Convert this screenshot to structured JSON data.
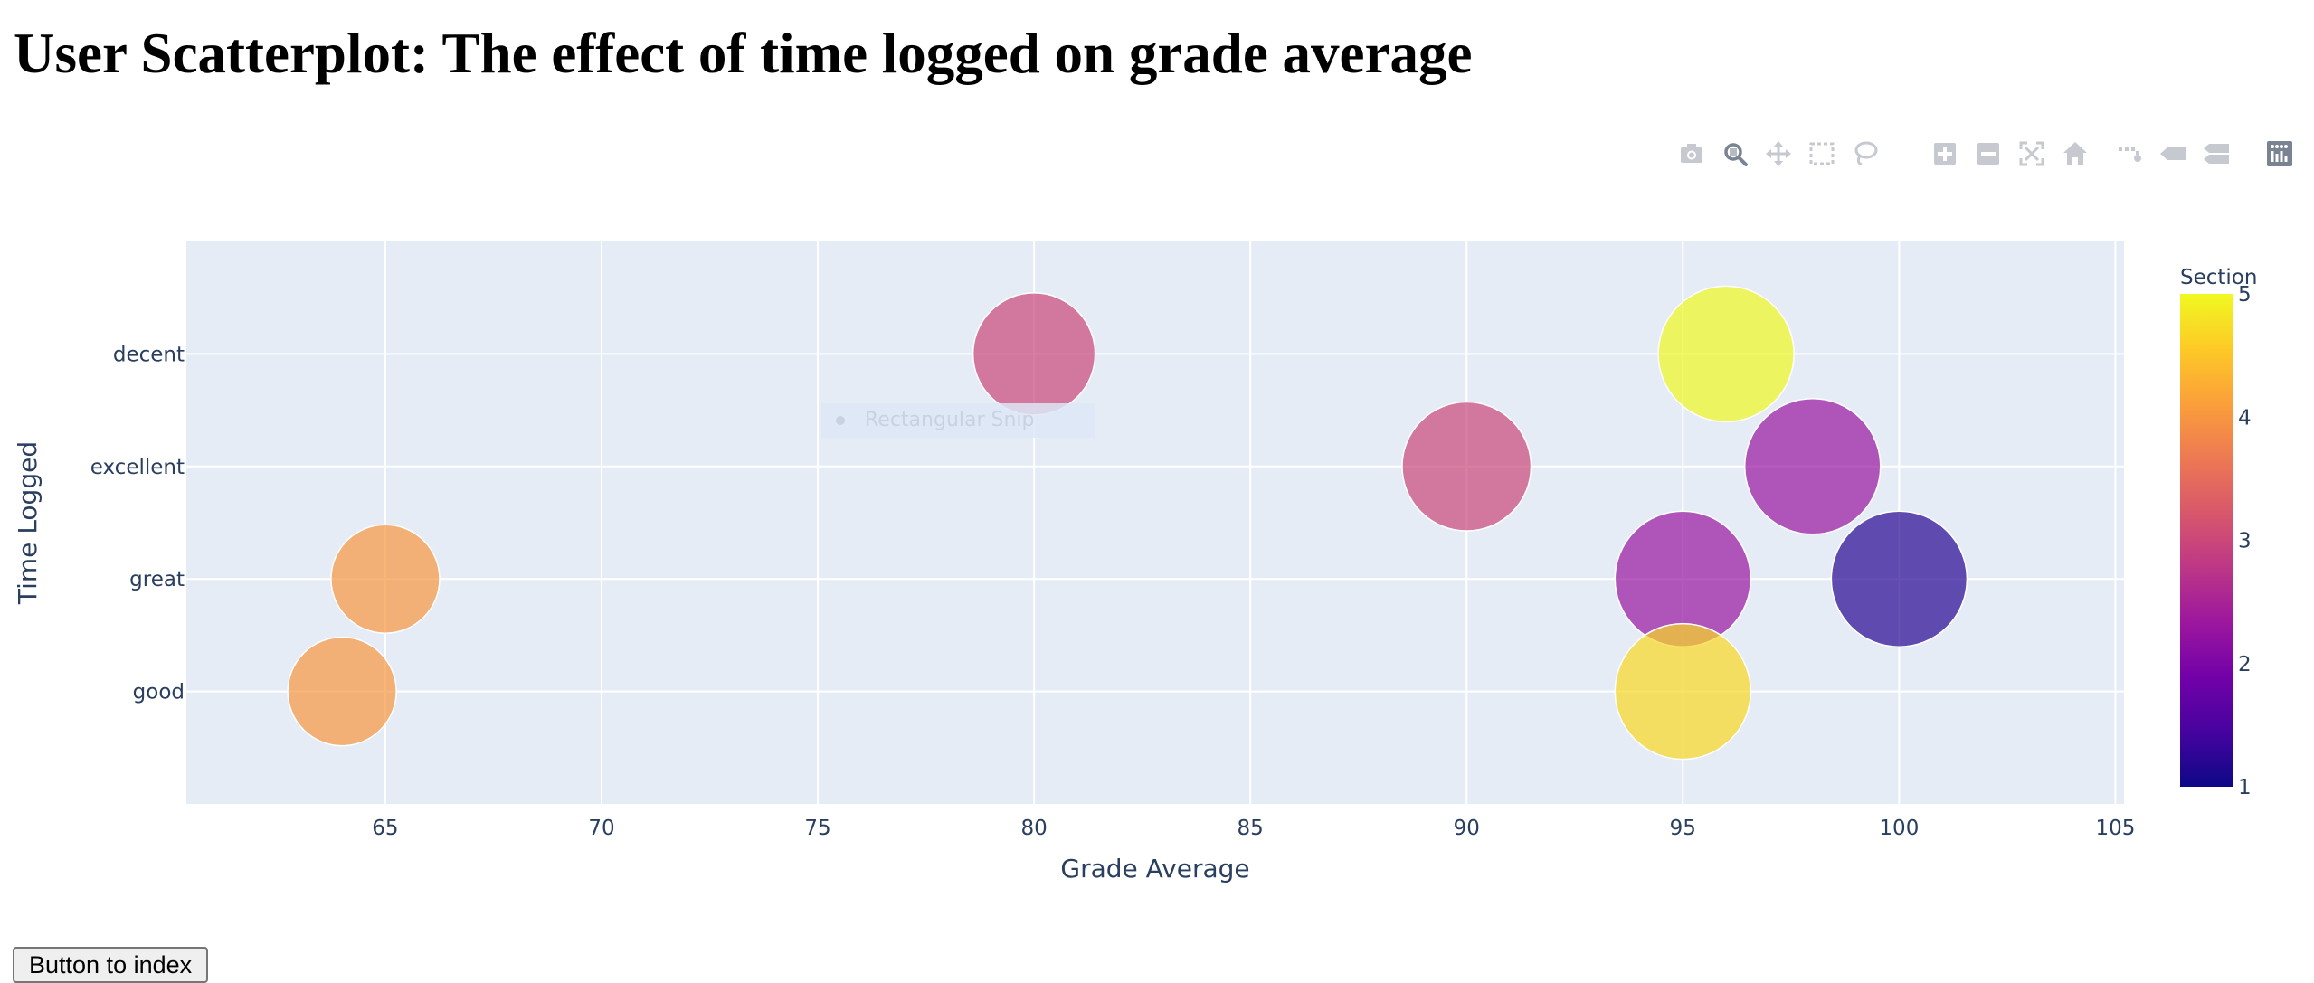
{
  "page": {
    "title": "User Scatterplot: The effect of time logged on grade average",
    "button_label": "Button to index"
  },
  "modebar": {
    "buttons": [
      {
        "name": "camera-icon"
      },
      {
        "name": "zoom-icon",
        "active": true
      },
      {
        "name": "pan-icon"
      },
      {
        "name": "box-select-icon"
      },
      {
        "name": "lasso-select-icon"
      },
      {
        "name": "zoom-in-icon"
      },
      {
        "name": "zoom-out-icon"
      },
      {
        "name": "autoscale-icon"
      },
      {
        "name": "reset-axes-icon"
      },
      {
        "name": "spike-lines-icon"
      },
      {
        "name": "hover-closest-icon"
      },
      {
        "name": "hover-compare-icon"
      },
      {
        "name": "plotly-logo-icon"
      }
    ]
  },
  "overlay": {
    "snip_label": "Rectangular Snip"
  },
  "chart_data": {
    "type": "scatter",
    "title": "",
    "xlabel": "Grade Average",
    "ylabel": "Time Logged",
    "xlim": [
      60.4,
      105.2
    ],
    "x_ticks": [
      65,
      70,
      75,
      80,
      85,
      90,
      95,
      100,
      105
    ],
    "y_categories": [
      "good",
      "great",
      "excellent",
      "decent"
    ],
    "grid": true,
    "colorbar": {
      "title": "Section",
      "range": [
        1,
        5
      ],
      "ticks": [
        1,
        2,
        3,
        4,
        5
      ],
      "colorscale": [
        "#0d0887",
        "#46039f",
        "#7201a8",
        "#9c179e",
        "#bd3786",
        "#d8576b",
        "#ed7953",
        "#fb9f3a",
        "#fdca26",
        "#f0f921"
      ]
    },
    "points": [
      {
        "x": 80,
        "y": "decent",
        "section": 3,
        "size": 9
      },
      {
        "x": 96,
        "y": "decent",
        "section": 5,
        "size": 10
      },
      {
        "x": 90,
        "y": "excellent",
        "section": 3,
        "size": 9.5
      },
      {
        "x": 98,
        "y": "excellent",
        "section": 2.3,
        "size": 10
      },
      {
        "x": 65,
        "y": "great",
        "section": 4,
        "size": 8
      },
      {
        "x": 95,
        "y": "great",
        "section": 2.3,
        "size": 10
      },
      {
        "x": 100,
        "y": "great",
        "section": 1.2,
        "size": 10
      },
      {
        "x": 64,
        "y": "good",
        "section": 4,
        "size": 8
      },
      {
        "x": 95,
        "y": "good",
        "section": 4.7,
        "size": 10
      }
    ]
  }
}
